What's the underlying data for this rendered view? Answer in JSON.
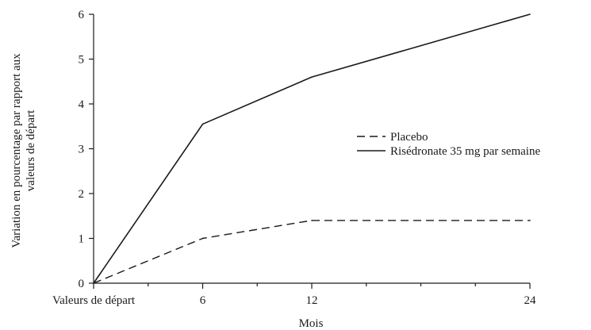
{
  "chart_data": {
    "type": "line",
    "title": "",
    "xlabel": "Mois",
    "ylabel_lines": [
      "Variation en pourcentage par rapport aux",
      "valeurs de départ"
    ],
    "x": [
      0,
      6,
      12,
      24
    ],
    "x_tick_labels": [
      "Valeurs de départ",
      "6",
      "12",
      "24"
    ],
    "xlim": [
      0,
      24
    ],
    "ylim": [
      0,
      6
    ],
    "y_ticks": [
      0,
      1,
      2,
      3,
      4,
      5,
      6
    ],
    "grid": false,
    "legend_position": "right-middle",
    "series": [
      {
        "name": "Placebo",
        "style": "dashed",
        "values": [
          0,
          1.0,
          1.4,
          1.4
        ]
      },
      {
        "name": "Risédronate 35 mg par semaine",
        "style": "solid",
        "values": [
          0,
          3.55,
          4.6,
          6.0
        ]
      }
    ],
    "colors": {
      "line": "#1a1a1a",
      "axis": "#1a1a1a"
    }
  }
}
